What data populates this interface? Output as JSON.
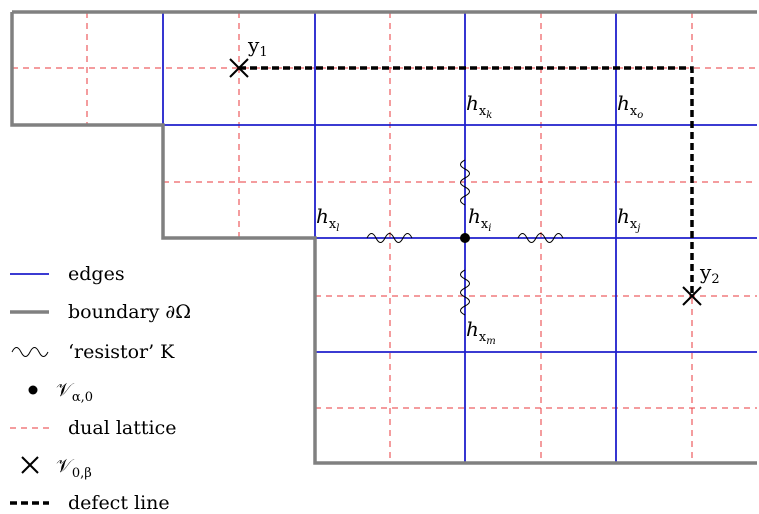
{
  "colors": {
    "edge": "#1f1fcc",
    "boundary": "#808080",
    "dual": "#e8383d",
    "defect": "#000000",
    "node": "#000000"
  },
  "points": {
    "y1": "y",
    "y1_sub": "1",
    "y2": "y",
    "y2_sub": "2"
  },
  "node_labels": {
    "hk": "h",
    "hk_sub": "x",
    "hk_subsub": "k",
    "ho": "h",
    "ho_sub": "x",
    "ho_subsub": "o",
    "hl": "h",
    "hl_sub": "x",
    "hl_subsub": "l",
    "hi": "h",
    "hi_sub": "x",
    "hi_subsub": "i",
    "hj": "h",
    "hj_sub": "x",
    "hj_subsub": "j",
    "hm": "h",
    "hm_sub": "x",
    "hm_subsub": "m"
  },
  "legend": {
    "edges": "edges",
    "boundary": "boundary ∂Ω",
    "resistor": "‘resistor’ K",
    "v_alpha": "𝒱",
    "v_alpha_sub": "α,0",
    "dual": "dual lattice",
    "v_beta": "𝒱",
    "v_beta_sub": "0,β",
    "defect": "defect line"
  }
}
